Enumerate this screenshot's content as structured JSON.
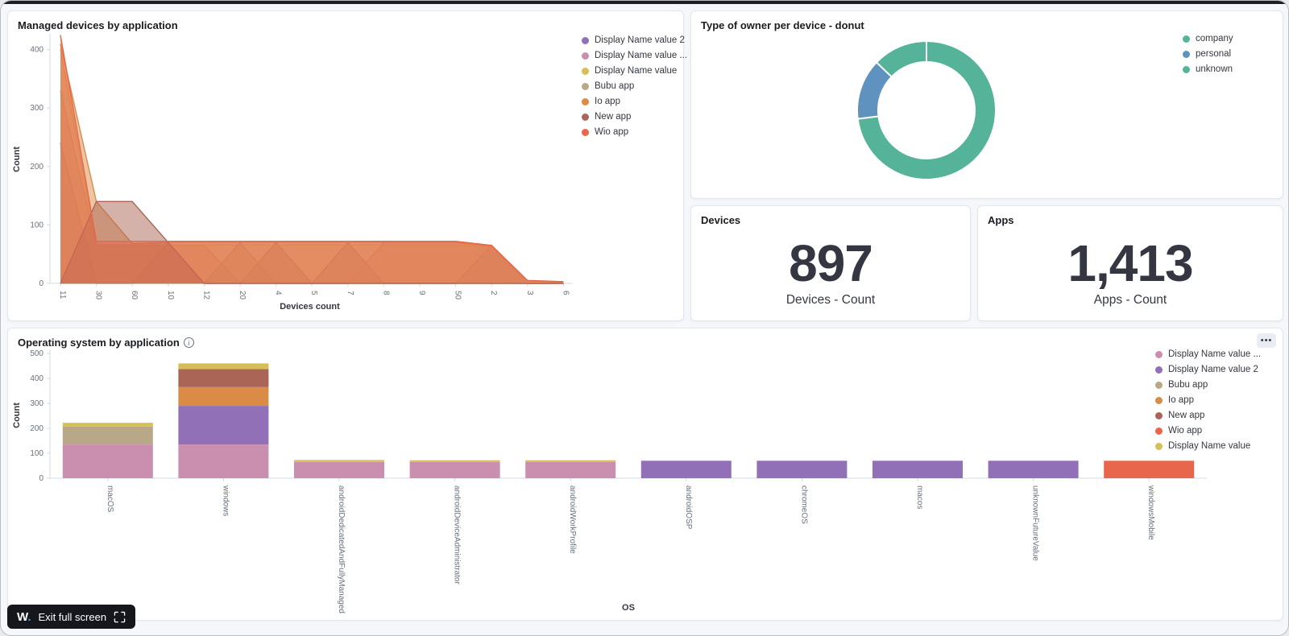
{
  "window": {
    "logo_text": "W",
    "logo_dot": ".",
    "exit_fullscreen_label": "Exit full screen"
  },
  "panels": {
    "area": {
      "title": "Managed devices by application"
    },
    "donut": {
      "title": "Type of owner per device - donut"
    },
    "devices_metric": {
      "title": "Devices",
      "value": "897",
      "label": "Devices - Count"
    },
    "apps_metric": {
      "title": "Apps",
      "value": "1,413",
      "label": "Apps - Count"
    },
    "bar": {
      "title": "Operating system by application",
      "options_icon": "•••"
    }
  },
  "chart_data": [
    {
      "id": "managed-devices-area",
      "type": "area",
      "title": "Managed devices by application",
      "xlabel": "Devices count",
      "ylabel": "Count",
      "ylim": [
        0,
        440
      ],
      "yticks": [
        0,
        100,
        200,
        300,
        400
      ],
      "grid": false,
      "legend_position": "right",
      "categories": [
        "11",
        "30",
        "60",
        "10",
        "12",
        "20",
        "4",
        "5",
        "7",
        "8",
        "9",
        "50",
        "2",
        "3",
        "6"
      ],
      "series": [
        {
          "name": "Display Name value 2",
          "color": "#9170B8",
          "values": [
            240,
            0,
            0,
            70,
            0,
            0,
            70,
            0,
            70,
            0,
            0,
            0,
            65,
            0,
            0
          ]
        },
        {
          "name": "Display Name value ...",
          "color": "#CA8EAE",
          "values": [
            330,
            65,
            65,
            65,
            65,
            0,
            0,
            0,
            0,
            70,
            70,
            70,
            65,
            0,
            0
          ]
        },
        {
          "name": "Display Name value",
          "color": "#D6BF57",
          "values": [
            400,
            66,
            66,
            66,
            66,
            66,
            66,
            66,
            66,
            66,
            66,
            66,
            63,
            4,
            2
          ]
        },
        {
          "name": "Bubu app",
          "color": "#B9A888",
          "values": [
            0,
            0,
            0,
            0,
            0,
            70,
            0,
            0,
            0,
            0,
            0,
            0,
            0,
            0,
            0
          ]
        },
        {
          "name": "Io app",
          "color": "#DA8B45",
          "values": [
            410,
            140,
            68,
            70,
            70,
            70,
            70,
            70,
            70,
            70,
            70,
            70,
            64,
            4,
            2
          ]
        },
        {
          "name": "New app",
          "color": "#AA6556",
          "values": [
            0,
            140,
            140,
            70,
            0,
            0,
            0,
            0,
            0,
            0,
            0,
            0,
            0,
            0,
            0
          ]
        },
        {
          "name": "Wio app",
          "color": "#E7664C",
          "values": [
            425,
            72,
            72,
            72,
            72,
            72,
            72,
            72,
            72,
            72,
            72,
            72,
            65,
            5,
            3
          ]
        }
      ]
    },
    {
      "id": "owner-donut",
      "type": "pie",
      "title": "Type of owner per device - donut",
      "donut": true,
      "legend_position": "right",
      "slices": [
        {
          "name": "company",
          "color": "#54B399",
          "value": 655,
          "pct": 73.0
        },
        {
          "name": "personal",
          "color": "#6092C0",
          "value": 127,
          "pct": 14.2
        },
        {
          "name": "unknown",
          "color": "#54B399",
          "value": 115,
          "pct": 12.8
        }
      ]
    },
    {
      "id": "devices-metric",
      "type": "metric",
      "title": "Devices",
      "value": 897,
      "display": "897",
      "label": "Devices - Count"
    },
    {
      "id": "apps-metric",
      "type": "metric",
      "title": "Apps",
      "value": 1413,
      "display": "1,413",
      "label": "Apps - Count"
    },
    {
      "id": "os-by-application-bar",
      "type": "bar",
      "stacked": true,
      "title": "Operating system by application",
      "xlabel": "OS",
      "ylabel": "Count",
      "ylim": [
        0,
        500
      ],
      "yticks": [
        0,
        100,
        200,
        300,
        400,
        500
      ],
      "grid": false,
      "legend_position": "right",
      "categories": [
        "macOS",
        "windows",
        "androidDedicatedAndFullyManaged",
        "androidDeviceAdministrator",
        "androidWorkProfile",
        "androidOSP",
        "chromeOS",
        "macos",
        "unknownFutureValue",
        "windowsMobile"
      ],
      "series": [
        {
          "name": "Display Name value ...",
          "color": "#CA8EAE",
          "values": [
            135,
            135,
            65,
            65,
            65,
            0,
            0,
            0,
            0,
            0
          ]
        },
        {
          "name": "Display Name value 2",
          "color": "#9170B8",
          "values": [
            0,
            155,
            0,
            0,
            0,
            70,
            70,
            70,
            70,
            0
          ]
        },
        {
          "name": "Bubu app",
          "color": "#B9A888",
          "values": [
            72,
            0,
            0,
            0,
            0,
            0,
            0,
            0,
            0,
            0
          ]
        },
        {
          "name": "Io app",
          "color": "#DA8B45",
          "values": [
            0,
            75,
            0,
            0,
            0,
            0,
            0,
            0,
            0,
            0
          ]
        },
        {
          "name": "New app",
          "color": "#AA6556",
          "values": [
            0,
            72,
            0,
            0,
            0,
            0,
            0,
            0,
            0,
            0
          ]
        },
        {
          "name": "Wio app",
          "color": "#E7664C",
          "values": [
            0,
            0,
            0,
            0,
            0,
            0,
            0,
            0,
            0,
            70
          ]
        },
        {
          "name": "Display Name value",
          "color": "#D6BF57",
          "values": [
            15,
            23,
            8,
            7,
            7,
            0,
            0,
            0,
            0,
            0
          ]
        }
      ]
    }
  ]
}
